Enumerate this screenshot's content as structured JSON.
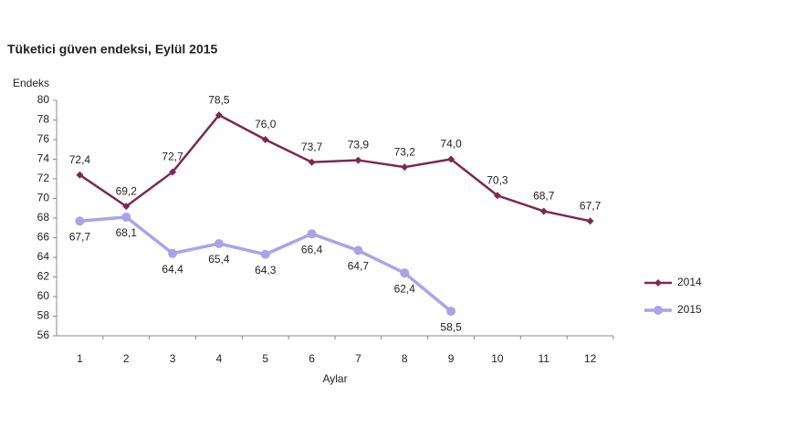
{
  "chart_data": {
    "type": "line",
    "title": "Tüketici güven endeksi, Eylül 2015",
    "y_label": "Endeks",
    "x_label": "Aylar",
    "categories": [
      "1",
      "2",
      "3",
      "4",
      "5",
      "6",
      "7",
      "8",
      "9",
      "10",
      "11",
      "12"
    ],
    "series": [
      {
        "name": "2014",
        "color": "#7b2a4f",
        "values": [
          72.4,
          69.2,
          72.7,
          78.5,
          76.0,
          73.7,
          73.9,
          73.2,
          74.0,
          70.3,
          68.7,
          67.7
        ],
        "value_labels": [
          "72,4",
          "69,2",
          "72,7",
          "78,5",
          "76,0",
          "73,7",
          "73,9",
          "73,2",
          "74,0",
          "70,3",
          "68,7",
          "67,7"
        ]
      },
      {
        "name": "2015",
        "color": "#a9a4e8",
        "values": [
          67.7,
          68.1,
          64.4,
          65.4,
          64.3,
          66.4,
          64.7,
          62.4,
          58.5,
          null,
          null,
          null
        ],
        "value_labels": [
          "67,7",
          "68,1",
          "64,4",
          "65,4",
          "64,3",
          "66,4",
          "64,7",
          "62,4",
          "58,5",
          null,
          null,
          null
        ]
      }
    ],
    "ylim": [
      56,
      80
    ],
    "yticks": [
      56,
      58,
      60,
      62,
      64,
      66,
      68,
      70,
      72,
      74,
      76,
      78,
      80
    ],
    "grid": false,
    "legend": "right"
  }
}
